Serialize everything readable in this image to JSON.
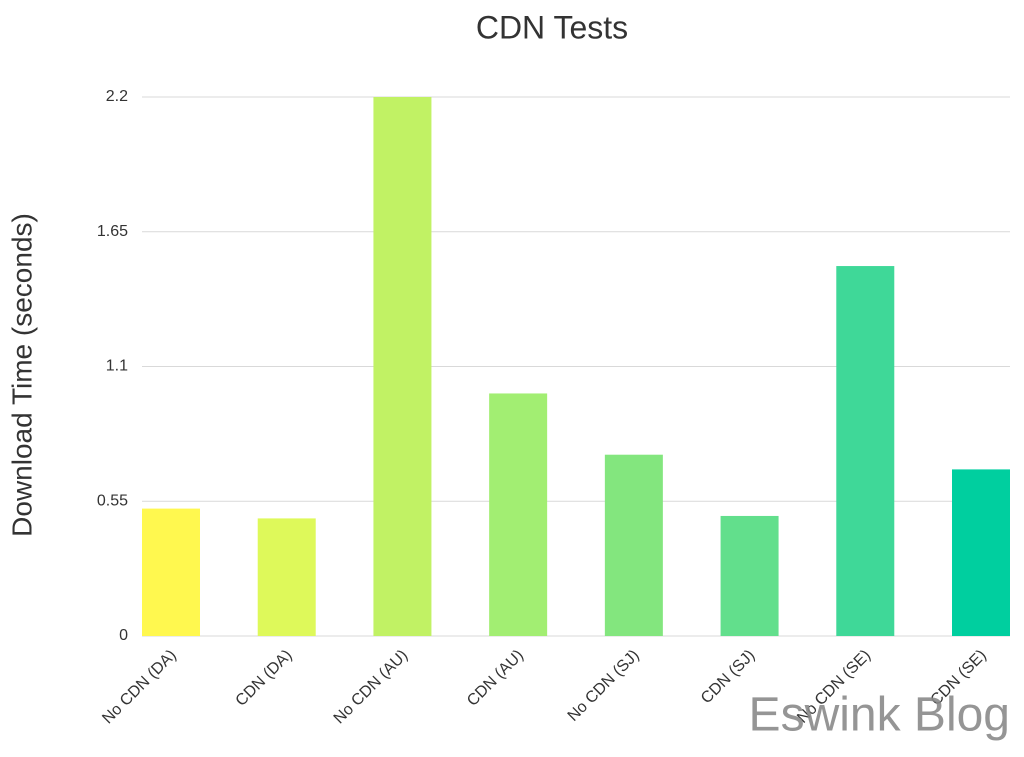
{
  "chart_data": {
    "type": "bar",
    "title": "CDN Tests",
    "y_label": "Download Time (seconds)",
    "categories": [
      "No CDN (DA)",
      "CDN (DA)",
      "No CDN (AU)",
      "CDN (AU)",
      "No CDN (SJ)",
      "CDN (SJ)",
      "No CDN (SE)",
      "CDN (SE)"
    ],
    "values": [
      0.52,
      0.48,
      2.2,
      0.99,
      0.74,
      0.49,
      1.51,
      0.68
    ],
    "colors": [
      "#fff84f",
      "#def95a",
      "#c1f264",
      "#a2ee72",
      "#83e67e",
      "#62df8c",
      "#3fd898",
      "#00cf9f"
    ],
    "ylim": [
      0,
      2.2
    ],
    "yticks": [
      0,
      0.55,
      1.1,
      1.65,
      2.2
    ],
    "grid": true,
    "watermark": "Eswink Blog"
  }
}
